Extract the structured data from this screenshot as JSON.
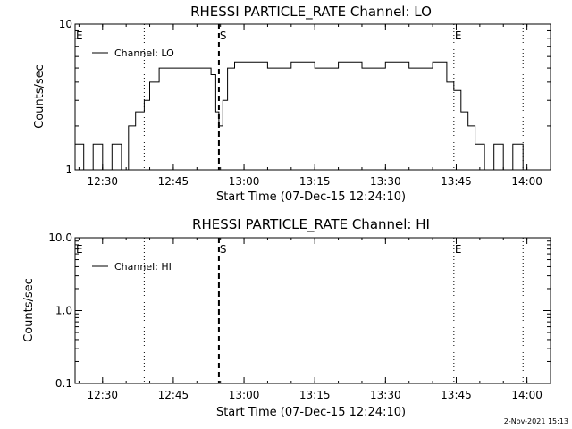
{
  "chart_data": [
    {
      "type": "line",
      "title": "RHESSI PARTICLE_RATE Channel: LO",
      "xlabel": "Start Time (07-Dec-15 12:24:10)",
      "ylabel": "Counts/sec",
      "y_scale": "log",
      "ylim": [
        1,
        10
      ],
      "y_tick_labels": [
        "1",
        "10"
      ],
      "y_tick_values": [
        1,
        10
      ],
      "xlim": [
        "12:24:10",
        "14:05:00"
      ],
      "x_tick_labels": [
        "12:30",
        "12:45",
        "13:00",
        "13:15",
        "13:30",
        "13:45",
        "14:00"
      ],
      "legend": {
        "placement": "top-left",
        "entries": [
          "Channel: LO"
        ]
      },
      "markers": [
        {
          "label": "E",
          "time": "12:24:10",
          "style": "dotted"
        },
        {
          "label": "",
          "time": "12:38:50",
          "style": "dotted"
        },
        {
          "label": "S",
          "time": "12:54:40",
          "style": "dashed"
        },
        {
          "label": "E",
          "time": "13:44:30",
          "style": "dotted"
        },
        {
          "label": "",
          "time": "13:59:10",
          "style": "dotted"
        }
      ],
      "series": [
        {
          "name": "Channel: LO",
          "x": [
            "12:24:10",
            "12:26:00",
            "12:28:00",
            "12:30:00",
            "12:32:00",
            "12:34:00",
            "12:35:30",
            "12:37:00",
            "12:38:50",
            "12:40:00",
            "12:42:00",
            "12:45:00",
            "12:48:00",
            "12:51:00",
            "12:53:00",
            "12:54:00",
            "12:54:40",
            "12:55:30",
            "12:56:30",
            "12:58:00",
            "13:00:00",
            "13:05:00",
            "13:10:00",
            "13:15:00",
            "13:20:00",
            "13:25:00",
            "13:30:00",
            "13:35:00",
            "13:40:00",
            "13:43:00",
            "13:44:30",
            "13:46:00",
            "13:47:30",
            "13:49:00",
            "13:51:00",
            "13:53:00",
            "13:55:00",
            "13:57:00",
            "13:59:10"
          ],
          "values": [
            1.5,
            1,
            1.5,
            1,
            1.5,
            1,
            2,
            2.5,
            3,
            4,
            5,
            5,
            5,
            5,
            4.5,
            2.5,
            2,
            3,
            5,
            5.5,
            5.5,
            5,
            5.5,
            5,
            5.5,
            5,
            5.5,
            5,
            5.5,
            4,
            3.5,
            2.5,
            2,
            1.5,
            1,
            1.5,
            1,
            1.5,
            1
          ]
        }
      ]
    },
    {
      "type": "line",
      "title": "RHESSI PARTICLE_RATE Channel: HI",
      "xlabel": "Start Time (07-Dec-15 12:24:10)",
      "ylabel": "Counts/sec",
      "y_scale": "log",
      "ylim": [
        0.1,
        10
      ],
      "y_tick_labels": [
        "0.1",
        "1.0",
        "10.0"
      ],
      "y_tick_values": [
        0.1,
        1,
        10
      ],
      "xlim": [
        "12:24:10",
        "14:05:00"
      ],
      "x_tick_labels": [
        "12:30",
        "12:45",
        "13:00",
        "13:15",
        "13:30",
        "13:45",
        "14:00"
      ],
      "legend": {
        "placement": "top-left",
        "entries": [
          "Channel: HI"
        ]
      },
      "markers": [
        {
          "label": "E",
          "time": "12:24:10",
          "style": "dotted"
        },
        {
          "label": "",
          "time": "12:38:50",
          "style": "dotted"
        },
        {
          "label": "S",
          "time": "12:54:40",
          "style": "dashed"
        },
        {
          "label": "E",
          "time": "13:44:30",
          "style": "dotted"
        },
        {
          "label": "",
          "time": "13:59:10",
          "style": "dotted"
        }
      ],
      "series": [
        {
          "name": "Channel: HI",
          "x": [],
          "values": []
        }
      ]
    }
  ],
  "footer": {
    "timestamp": "2-Nov-2021 15:13"
  }
}
